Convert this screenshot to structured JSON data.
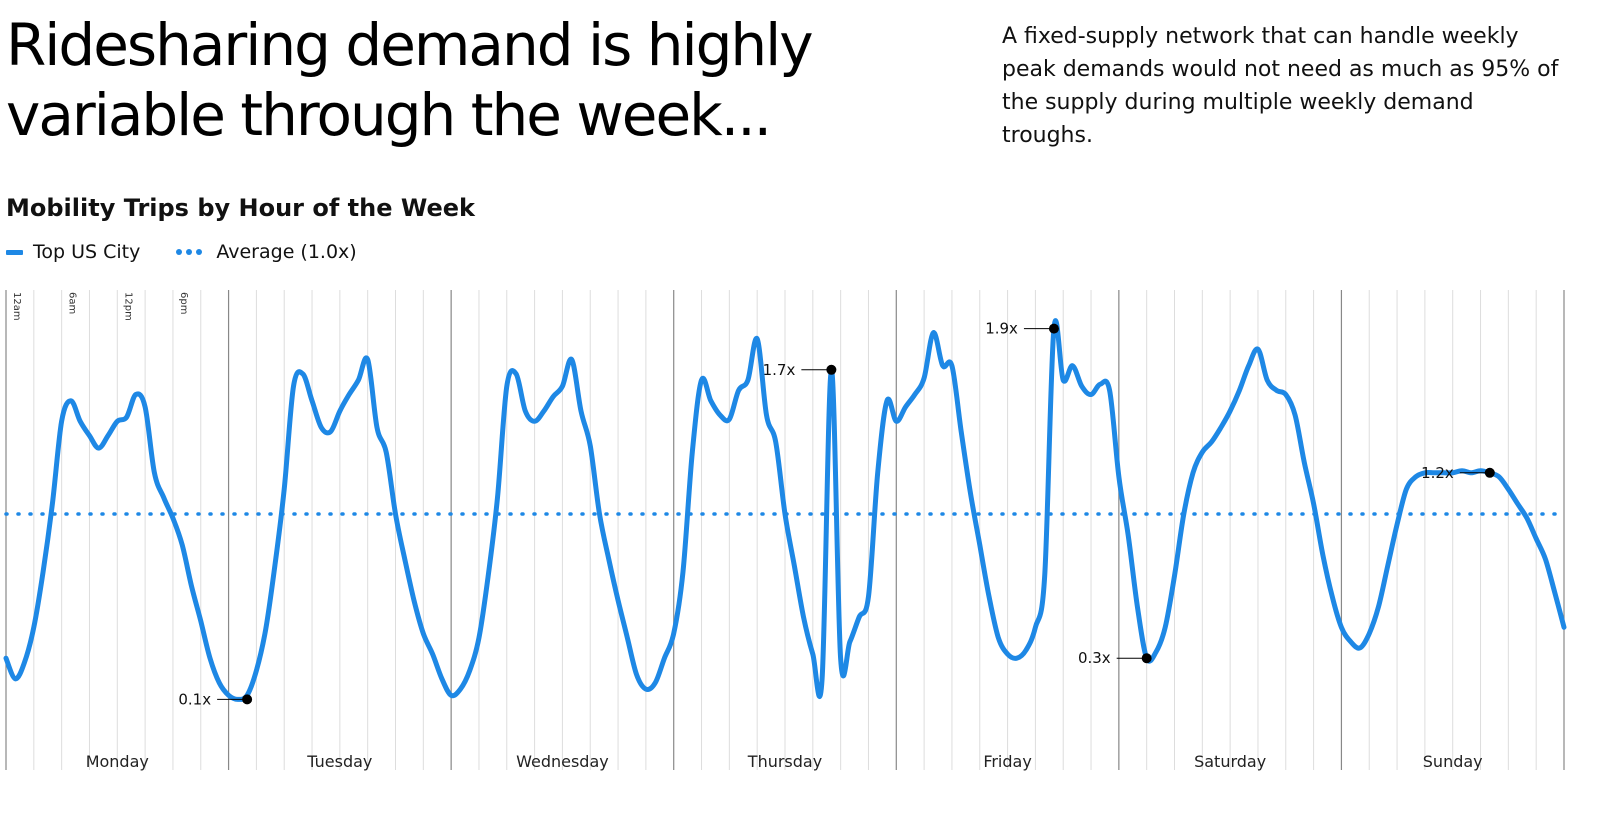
{
  "header": {
    "headline": "Ridesharing demand is highly variable through the week...",
    "intro": "A fixed-supply network that can handle weekly peak demands would not need as much as 95% of the supply during multiple weekly demand troughs."
  },
  "colors": {
    "series": "#1e88e5",
    "day_divider": "#888888",
    "hour_grid": "#dddddd",
    "annotation": "#000000"
  },
  "chart_data": {
    "type": "line",
    "title": "Mobility Trips by Hour of the Week",
    "legend": {
      "position": "top-left",
      "items": [
        {
          "label": "Top US City",
          "style": "solid"
        },
        {
          "label": "Average (1.0x)",
          "style": "dotted"
        }
      ]
    },
    "days": [
      "Monday",
      "Tuesday",
      "Wednesday",
      "Thursday",
      "Friday",
      "Saturday",
      "Sunday"
    ],
    "hour_tick_labels": [
      {
        "hour": 0,
        "label": "12am"
      },
      {
        "hour": 6,
        "label": "6am"
      },
      {
        "hour": 12,
        "label": "12pm"
      },
      {
        "hour": 18,
        "label": "6pm"
      }
    ],
    "x_unit": "hour of week",
    "ylim": [
      0.0,
      2.0
    ],
    "reference_line": {
      "name": "Average (1.0x)",
      "value": 1.0
    },
    "annotations": [
      {
        "hour": 26,
        "value": 0.1,
        "label": "0.1x"
      },
      {
        "hour": 89,
        "value": 1.7,
        "label": "1.7x"
      },
      {
        "hour": 113,
        "value": 1.9,
        "label": "1.9x"
      },
      {
        "hour": 123,
        "value": 0.3,
        "label": "0.3x"
      },
      {
        "hour": 160,
        "value": 1.2,
        "label": "1.2x"
      }
    ],
    "series": [
      {
        "name": "Top US City",
        "points": [
          [
            0,
            0.3
          ],
          [
            1,
            0.2
          ],
          [
            2,
            0.28
          ],
          [
            3,
            0.45
          ],
          [
            4,
            0.72
          ],
          [
            5,
            1.05
          ],
          [
            6,
            1.45
          ],
          [
            7,
            1.55
          ],
          [
            8,
            1.45
          ],
          [
            9,
            1.38
          ],
          [
            10,
            1.32
          ],
          [
            11,
            1.38
          ],
          [
            12,
            1.45
          ],
          [
            13,
            1.47
          ],
          [
            14,
            1.58
          ],
          [
            15,
            1.52
          ],
          [
            16,
            1.2
          ],
          [
            17,
            1.08
          ],
          [
            18,
            0.98
          ],
          [
            19,
            0.85
          ],
          [
            20,
            0.65
          ],
          [
            21,
            0.48
          ],
          [
            22,
            0.3
          ],
          [
            23,
            0.18
          ],
          [
            24,
            0.12
          ],
          [
            25,
            0.1
          ],
          [
            26,
            0.12
          ],
          [
            27,
            0.24
          ],
          [
            28,
            0.44
          ],
          [
            29,
            0.75
          ],
          [
            30,
            1.12
          ],
          [
            31,
            1.62
          ],
          [
            32,
            1.68
          ],
          [
            33,
            1.55
          ],
          [
            34,
            1.42
          ],
          [
            35,
            1.4
          ],
          [
            36,
            1.5
          ],
          [
            37,
            1.58
          ],
          [
            38,
            1.65
          ],
          [
            39,
            1.75
          ],
          [
            40,
            1.42
          ],
          [
            41,
            1.3
          ],
          [
            42,
            1.0
          ],
          [
            43,
            0.78
          ],
          [
            44,
            0.58
          ],
          [
            45,
            0.42
          ],
          [
            46,
            0.32
          ],
          [
            47,
            0.2
          ],
          [
            48,
            0.12
          ],
          [
            49,
            0.15
          ],
          [
            50,
            0.24
          ],
          [
            51,
            0.4
          ],
          [
            52,
            0.7
          ],
          [
            53,
            1.08
          ],
          [
            54,
            1.62
          ],
          [
            55,
            1.68
          ],
          [
            56,
            1.5
          ],
          [
            57,
            1.45
          ],
          [
            58,
            1.5
          ],
          [
            59,
            1.57
          ],
          [
            60,
            1.62
          ],
          [
            61,
            1.75
          ],
          [
            62,
            1.5
          ],
          [
            63,
            1.33
          ],
          [
            64,
            1.0
          ],
          [
            65,
            0.78
          ],
          [
            66,
            0.58
          ],
          [
            67,
            0.4
          ],
          [
            68,
            0.22
          ],
          [
            69,
            0.15
          ],
          [
            70,
            0.18
          ],
          [
            71,
            0.3
          ],
          [
            72,
            0.42
          ],
          [
            73,
            0.72
          ],
          [
            74,
            1.3
          ],
          [
            75,
            1.65
          ],
          [
            76,
            1.55
          ],
          [
            77,
            1.48
          ],
          [
            78,
            1.46
          ],
          [
            79,
            1.6
          ],
          [
            80,
            1.65
          ],
          [
            81,
            1.85
          ],
          [
            82,
            1.48
          ],
          [
            83,
            1.35
          ],
          [
            84,
            1.0
          ],
          [
            85,
            0.75
          ],
          [
            86,
            0.5
          ],
          [
            87,
            0.32
          ],
          [
            88,
            0.2
          ],
          [
            89,
            1.7
          ],
          [
            90,
            0.3
          ],
          [
            91,
            0.38
          ],
          [
            92,
            0.5
          ],
          [
            93,
            0.6
          ],
          [
            94,
            1.2
          ],
          [
            95,
            1.55
          ],
          [
            96,
            1.45
          ],
          [
            97,
            1.52
          ],
          [
            98,
            1.58
          ],
          [
            99,
            1.66
          ],
          [
            100,
            1.88
          ],
          [
            101,
            1.72
          ],
          [
            102,
            1.72
          ],
          [
            103,
            1.4
          ],
          [
            104,
            1.1
          ],
          [
            105,
            0.85
          ],
          [
            106,
            0.6
          ],
          [
            107,
            0.4
          ],
          [
            108,
            0.32
          ],
          [
            109,
            0.3
          ],
          [
            110,
            0.34
          ],
          [
            111,
            0.45
          ],
          [
            112,
            0.7
          ],
          [
            113,
            1.9
          ],
          [
            114,
            1.65
          ],
          [
            115,
            1.72
          ],
          [
            116,
            1.62
          ],
          [
            117,
            1.58
          ],
          [
            118,
            1.63
          ],
          [
            119,
            1.6
          ],
          [
            120,
            1.18
          ],
          [
            121,
            0.9
          ],
          [
            122,
            0.55
          ],
          [
            123,
            0.3
          ],
          [
            124,
            0.33
          ],
          [
            125,
            0.45
          ],
          [
            126,
            0.7
          ],
          [
            127,
            1.0
          ],
          [
            128,
            1.2
          ],
          [
            129,
            1.3
          ],
          [
            130,
            1.35
          ],
          [
            131,
            1.42
          ],
          [
            132,
            1.5
          ],
          [
            133,
            1.6
          ],
          [
            134,
            1.72
          ],
          [
            135,
            1.8
          ],
          [
            136,
            1.65
          ],
          [
            137,
            1.6
          ],
          [
            138,
            1.58
          ],
          [
            139,
            1.48
          ],
          [
            140,
            1.25
          ],
          [
            141,
            1.05
          ],
          [
            142,
            0.8
          ],
          [
            143,
            0.6
          ],
          [
            144,
            0.45
          ],
          [
            145,
            0.38
          ],
          [
            146,
            0.35
          ],
          [
            147,
            0.42
          ],
          [
            148,
            0.55
          ],
          [
            149,
            0.75
          ],
          [
            150,
            0.95
          ],
          [
            151,
            1.12
          ],
          [
            152,
            1.18
          ],
          [
            153,
            1.2
          ],
          [
            154,
            1.2
          ],
          [
            155,
            1.2
          ],
          [
            156,
            1.2
          ],
          [
            157,
            1.21
          ],
          [
            158,
            1.2
          ],
          [
            159,
            1.21
          ],
          [
            160,
            1.2
          ],
          [
            161,
            1.18
          ],
          [
            162,
            1.12
          ],
          [
            163,
            1.05
          ],
          [
            164,
            0.98
          ],
          [
            165,
            0.88
          ],
          [
            166,
            0.78
          ],
          [
            167,
            0.62
          ],
          [
            168,
            0.45
          ]
        ]
      }
    ]
  }
}
